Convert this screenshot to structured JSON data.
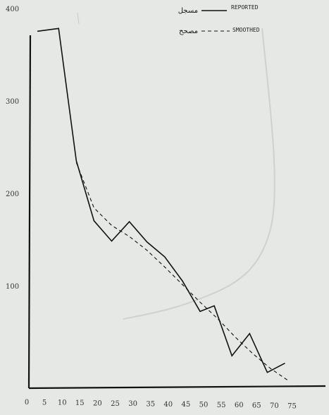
{
  "chart_data": {
    "type": "line",
    "title": "",
    "xlabel": "",
    "ylabel": "",
    "xlim": [
      0,
      77
    ],
    "ylim": [
      0,
      405
    ],
    "x_ticks": [
      0,
      5,
      10,
      15,
      20,
      25,
      30,
      35,
      40,
      45,
      50,
      55,
      60,
      65,
      70,
      75
    ],
    "y_ticks": [
      100,
      200,
      300,
      400
    ],
    "x_tick_labels": [
      "0",
      "5",
      "10",
      "15",
      "20",
      "25",
      "30",
      "35",
      "40",
      "45",
      "50",
      "55",
      "60",
      "65",
      "70",
      "75"
    ],
    "y_tick_labels": [
      "100",
      "200",
      "300",
      "400"
    ],
    "grid": false,
    "legend_position": "top-right",
    "legend": [
      {
        "label_en": "REPORTED",
        "label_ar": "مسجل",
        "style": "solid"
      },
      {
        "label_en": "SMOOTHED",
        "label_ar": "مصحح",
        "style": "dashed"
      }
    ],
    "series": [
      {
        "name": "REPORTED",
        "style": "solid",
        "color": "#111111",
        "x": [
          3,
          9,
          14,
          19,
          24,
          29,
          34,
          39,
          44,
          49,
          53,
          58,
          63,
          68,
          73
        ],
        "y": [
          383,
          386,
          243,
          178,
          156,
          177,
          155,
          139,
          113,
          80,
          86,
          32,
          56,
          14,
          24
        ]
      },
      {
        "name": "SMOOTHED",
        "style": "dashed",
        "color": "#111111",
        "x": [
          14,
          19,
          24,
          29,
          34,
          39,
          44,
          49,
          54,
          59,
          64,
          69,
          74
        ],
        "y": [
          241,
          192,
          173,
          161,
          146,
          128,
          109,
          90,
          72,
          52,
          34,
          18,
          5
        ]
      }
    ]
  }
}
